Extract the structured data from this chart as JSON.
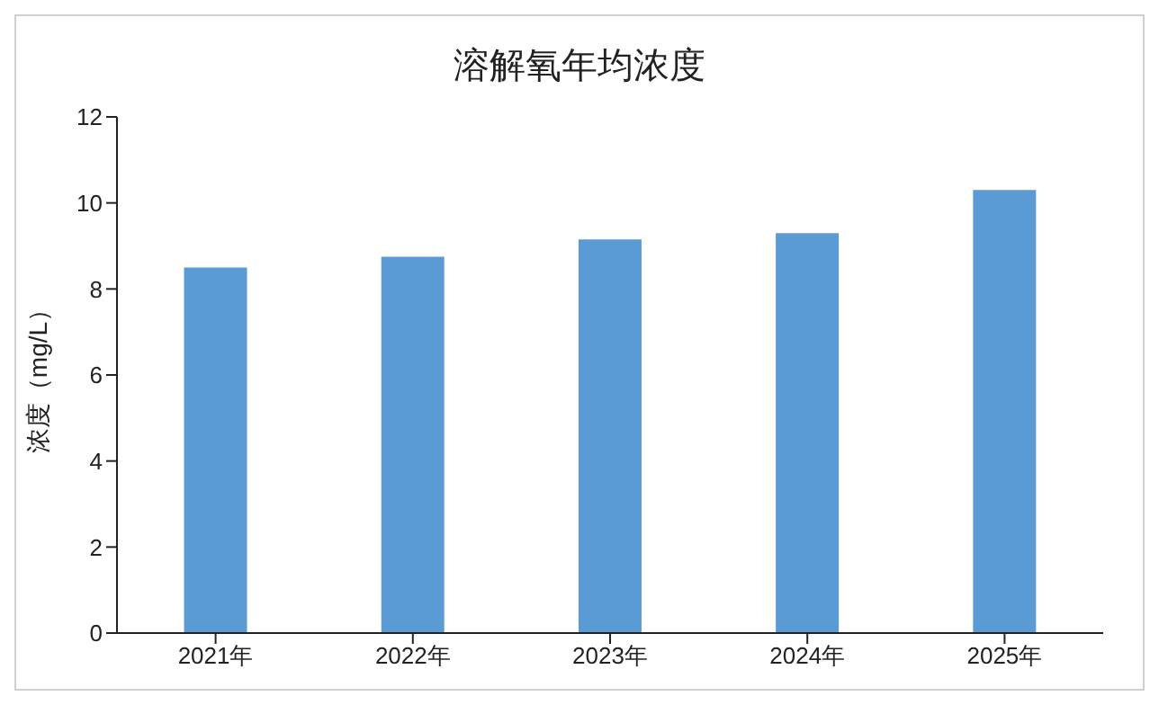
{
  "chart_data": {
    "type": "bar",
    "title": "溶解氧年均浓度",
    "ylabel": "浓度（mg/L）",
    "categories": [
      "2021年",
      "2022年",
      "2023年",
      "2024年",
      "2025年"
    ],
    "series": [
      {
        "color": "#5b9bd5",
        "values": [
          8.5,
          8.75,
          9.15,
          9.3,
          10.3
        ]
      }
    ],
    "ylim": [
      0,
      12
    ],
    "yticks": [
      0,
      2,
      4,
      6,
      8,
      10,
      12
    ],
    "grid": false,
    "legend": false
  }
}
